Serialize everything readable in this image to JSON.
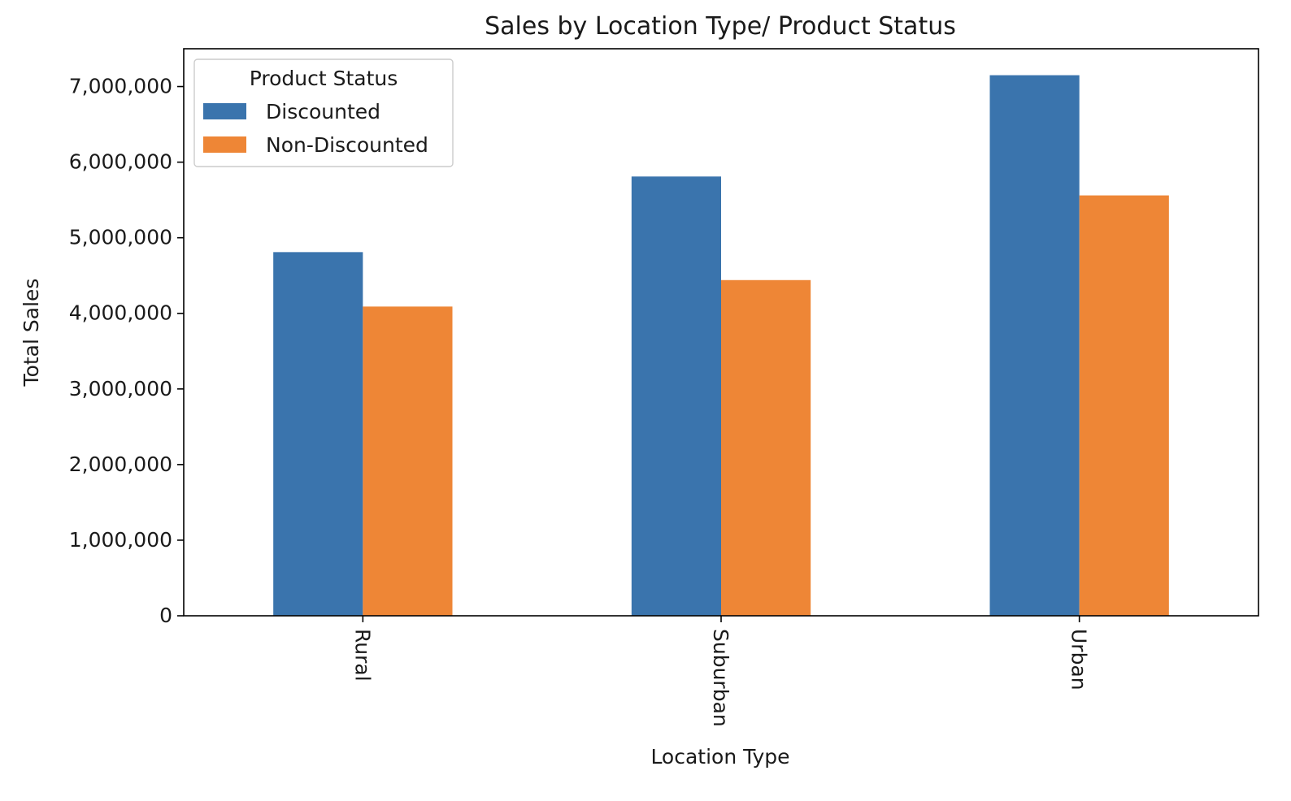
{
  "chart_data": {
    "type": "bar",
    "title": "Sales by Location Type/ Product Status",
    "xlabel": "Location Type",
    "ylabel": "Total Sales",
    "categories": [
      "Rural",
      "Suburban",
      "Urban"
    ],
    "series": [
      {
        "name": "Discounted",
        "color": "#3a74ad",
        "values": [
          4810000,
          5810000,
          7150000
        ]
      },
      {
        "name": "Non-Discounted",
        "color": "#ee8636",
        "values": [
          4090000,
          4440000,
          5560000
        ]
      }
    ],
    "ylim": [
      0,
      7500000
    ],
    "yticks": [
      0,
      1000000,
      2000000,
      3000000,
      4000000,
      5000000,
      6000000,
      7000000
    ],
    "ytick_labels": [
      "0",
      "1,000,000",
      "2,000,000",
      "3,000,000",
      "4,000,000",
      "5,000,000",
      "6,000,000",
      "7,000,000"
    ],
    "grid": false,
    "legend": {
      "title": "Product Status",
      "position": "top-left"
    }
  }
}
